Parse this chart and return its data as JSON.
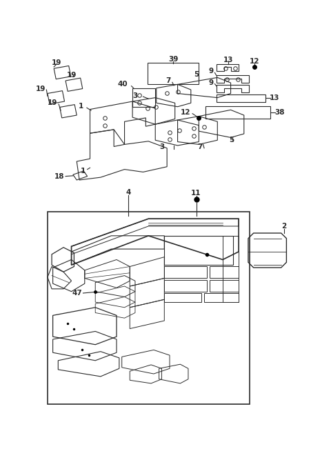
{
  "bg_color": "#ffffff",
  "line_color": "#2a2a2a",
  "fig_width": 4.8,
  "fig_height": 6.67,
  "dpi": 100
}
